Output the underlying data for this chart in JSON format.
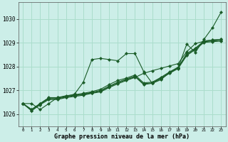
{
  "xlabel": "Graphe pression niveau de la mer (hPa)",
  "x_ticks": [
    0,
    1,
    2,
    3,
    4,
    5,
    6,
    7,
    8,
    9,
    10,
    11,
    12,
    13,
    14,
    15,
    16,
    17,
    18,
    19,
    20,
    21,
    22,
    23
  ],
  "ylim": [
    1025.5,
    1030.7
  ],
  "xlim": [
    -0.5,
    23.5
  ],
  "yticks": [
    1026,
    1027,
    1028,
    1029,
    1030
  ],
  "background_color": "#cceee8",
  "grid_color": "#aaddcc",
  "line_color": "#1a5c28",
  "series": [
    {
      "y": [
        1026.45,
        1026.45,
        1026.2,
        1026.45,
        1026.7,
        1026.75,
        1026.85,
        1027.35,
        1028.3,
        1028.35,
        1028.3,
        1028.25,
        1028.55,
        1028.55,
        1027.8,
        1027.3,
        1027.45,
        1027.75,
        1027.95,
        1028.95,
        1028.6,
        1029.15,
        1029.65,
        1030.3
      ]
    },
    {
      "y": [
        1026.45,
        1026.2,
        1026.45,
        1026.7,
        1026.7,
        1026.78,
        1026.82,
        1026.88,
        1026.95,
        1027.05,
        1027.25,
        1027.42,
        1027.52,
        1027.65,
        1027.32,
        1027.35,
        1027.55,
        1027.78,
        1027.98,
        1028.55,
        1028.78,
        1029.08,
        1029.12,
        1029.15
      ]
    },
    {
      "y": [
        1026.45,
        1026.2,
        1026.45,
        1026.68,
        1026.68,
        1026.75,
        1026.8,
        1026.85,
        1026.92,
        1027.0,
        1027.18,
        1027.35,
        1027.48,
        1027.6,
        1027.28,
        1027.32,
        1027.52,
        1027.75,
        1027.95,
        1028.5,
        1028.75,
        1029.05,
        1029.08,
        1029.1
      ]
    },
    {
      "y": [
        1026.45,
        1026.15,
        1026.42,
        1026.65,
        1026.65,
        1026.72,
        1026.78,
        1026.83,
        1026.9,
        1026.97,
        1027.15,
        1027.32,
        1027.45,
        1027.58,
        1027.25,
        1027.3,
        1027.5,
        1027.72,
        1027.92,
        1028.47,
        1028.72,
        1029.02,
        1029.05,
        1029.08
      ]
    },
    {
      "y": [
        1026.45,
        1026.15,
        1026.4,
        1026.62,
        1026.62,
        1026.7,
        1026.75,
        1026.8,
        1026.88,
        1026.94,
        1027.12,
        1027.28,
        1027.42,
        1027.55,
        1027.72,
        1027.83,
        1027.93,
        1028.03,
        1028.13,
        1028.63,
        1028.97,
        1029.07,
        1029.12,
        1029.15
      ]
    }
  ]
}
